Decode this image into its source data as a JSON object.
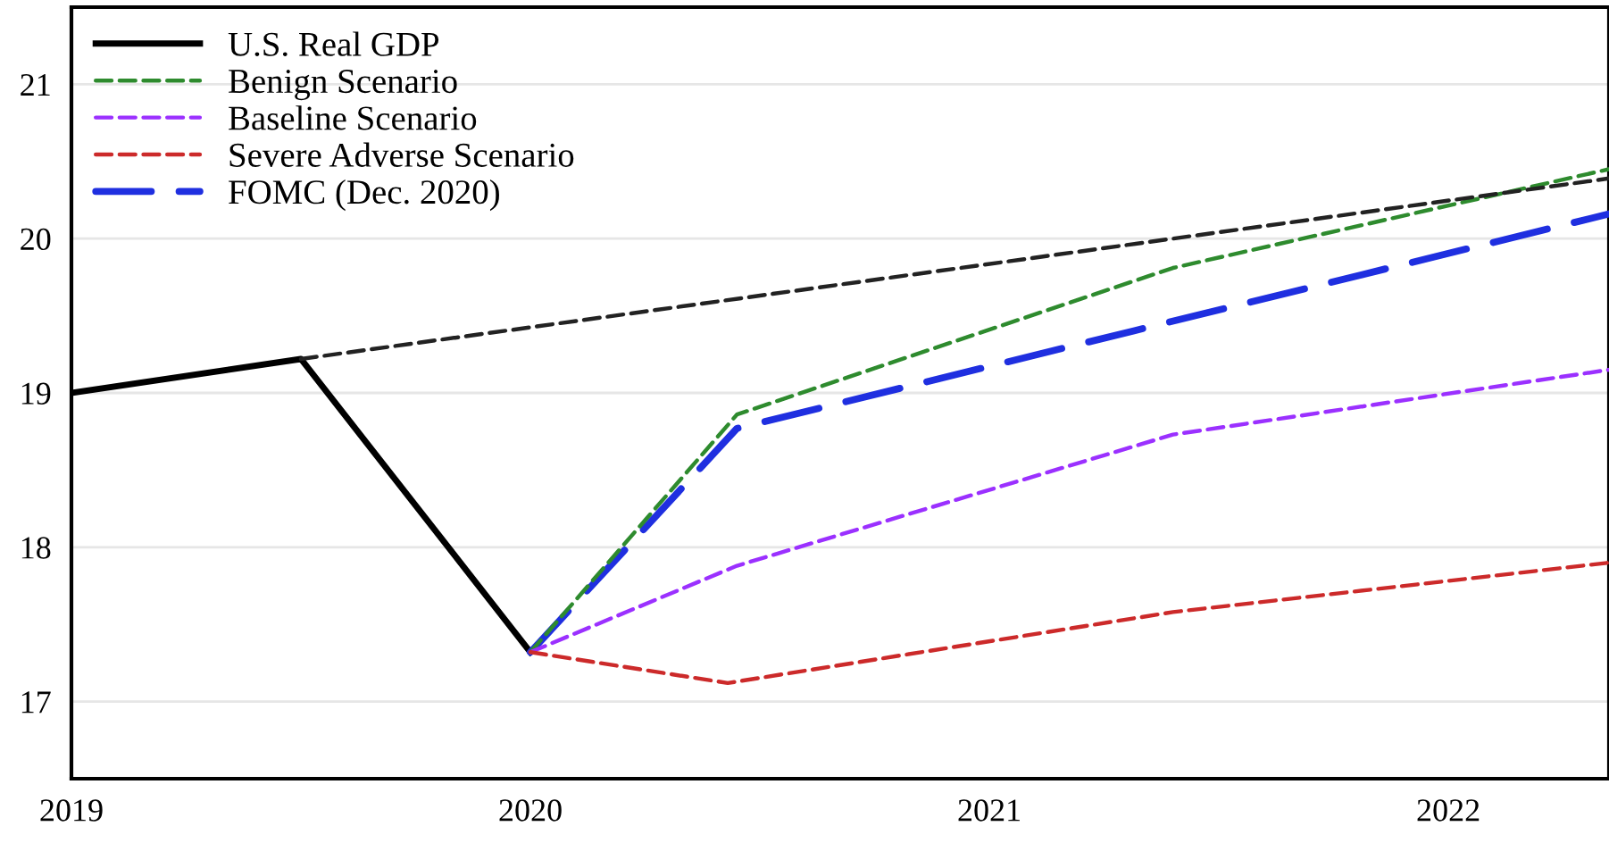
{
  "chart_data": {
    "type": "line",
    "series": [
      {
        "name": "U.S. Real GDP",
        "color": "#000000",
        "line_style": "solid",
        "x": [
          2019,
          2019.5,
          2020
        ],
        "values": [
          19.0,
          19.22,
          17.32
        ]
      },
      {
        "name": "Benign Scenario",
        "color": "#2e8b2e",
        "line_style": "dashed",
        "x": [
          2020,
          2020.45,
          2021.4,
          2022.35
        ],
        "values": [
          17.32,
          18.86,
          19.81,
          20.45
        ]
      },
      {
        "name": "Baseline Scenario",
        "color": "#9b30ff",
        "line_style": "dashed",
        "x": [
          2020,
          2020.45,
          2021.4,
          2022.35
        ],
        "values": [
          17.32,
          17.88,
          18.73,
          19.15
        ]
      },
      {
        "name": "Severe Adverse Scenario",
        "color": "#cc2a2a",
        "line_style": "dashed",
        "x": [
          2020,
          2020.43,
          2021.4,
          2022.35
        ],
        "values": [
          17.32,
          17.12,
          17.58,
          17.9
        ]
      },
      {
        "name": "FOMC (Dec. 2020)",
        "color": "#1f2fe0",
        "line_style": "longdash",
        "x": [
          2020,
          2020.45,
          2022.35
        ],
        "values": [
          17.32,
          18.77,
          20.16
        ]
      },
      {
        "color": "#222222",
        "line_style": "dashed",
        "x": [
          2019.5,
          2022.35
        ],
        "values": [
          19.22,
          20.39
        ]
      }
    ],
    "xlim": [
      2019,
      2022.35
    ],
    "xticks": [
      2019,
      2020,
      2021,
      2022
    ],
    "ylim": [
      16.5,
      21.5
    ],
    "yticks": [
      17,
      18,
      19,
      20,
      21
    ],
    "grid": "y",
    "legend": "top left",
    "marker": "none"
  }
}
